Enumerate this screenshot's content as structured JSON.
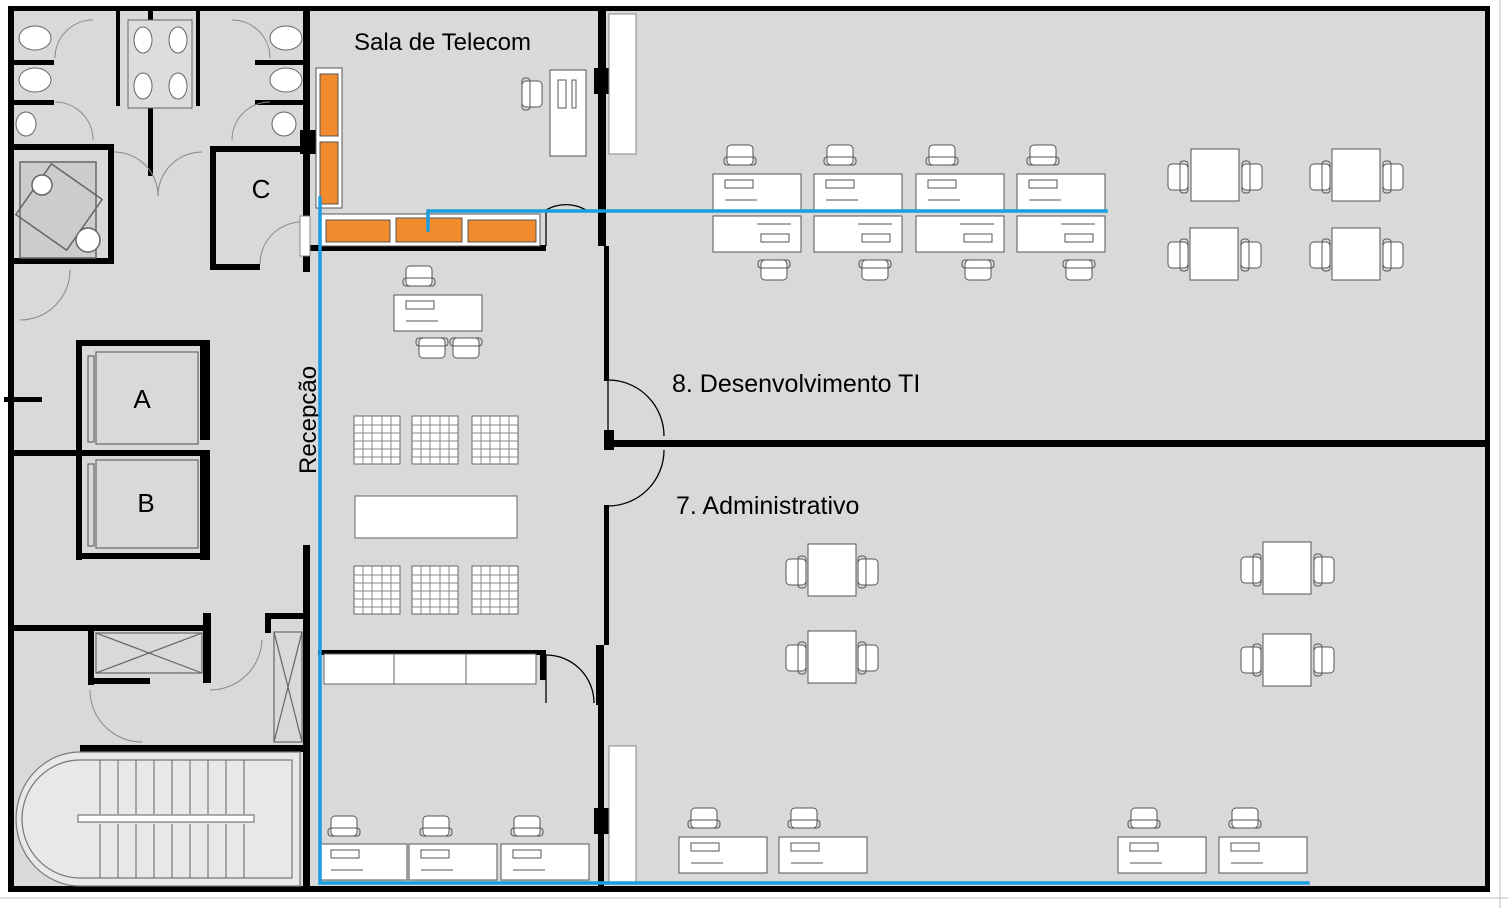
{
  "rooms": {
    "telecom": "Sala de Telecom",
    "recepcao": "Recepcão",
    "dev_ti": "8. Desenvolvimento TI",
    "administrativo": "7. Administrativo",
    "shaft_c": "C",
    "elevator_a": "A",
    "elevator_b": "B"
  },
  "colors": {
    "floor": "#d9d9d9",
    "wall": "#000000",
    "cable_route": "#1a9ee0",
    "rack": "#f28a2e",
    "furniture": "#ffffff"
  }
}
